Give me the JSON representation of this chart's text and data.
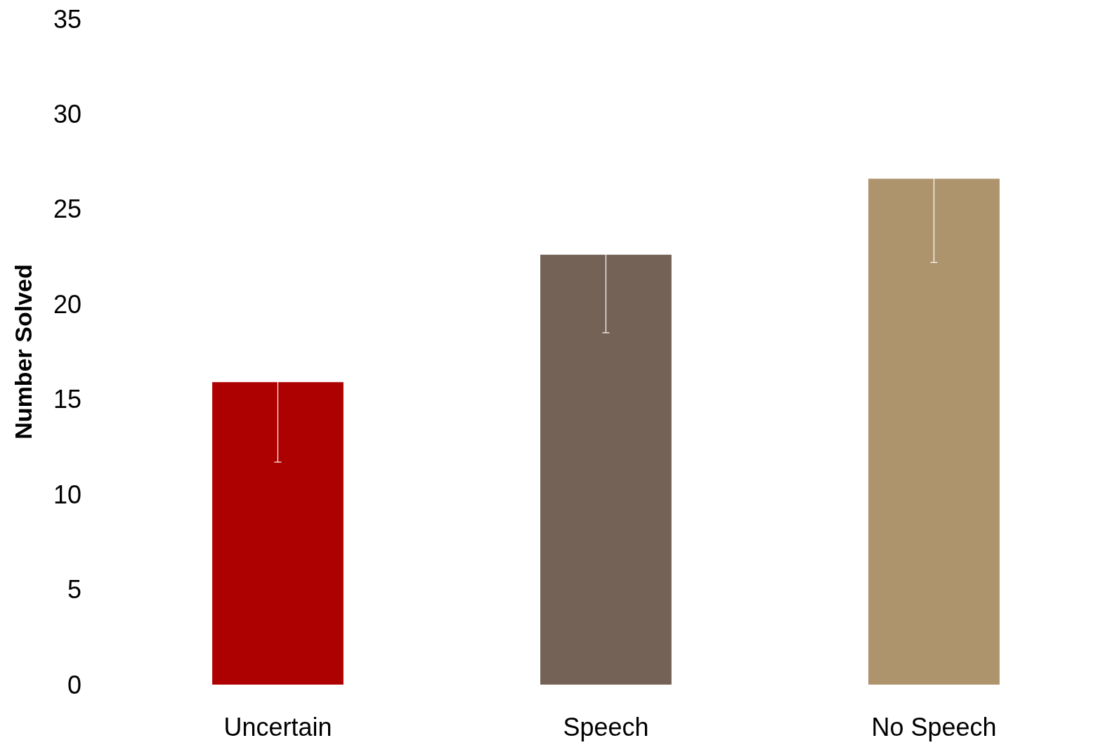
{
  "chart_data": {
    "type": "bar",
    "ylabel": "Number Solved",
    "categories": [
      "Uncertain",
      "Speech",
      "No Speech"
    ],
    "values": [
      15.9,
      22.6,
      26.6
    ],
    "colors": [
      "#ad0000",
      "#746257",
      "#ae946d"
    ],
    "errors": [
      4.2,
      4.1,
      4.4
    ],
    "ylim": [
      0,
      35
    ],
    "yticks": [
      0,
      5,
      10,
      15,
      20,
      25,
      30,
      35
    ],
    "grid": false
  }
}
